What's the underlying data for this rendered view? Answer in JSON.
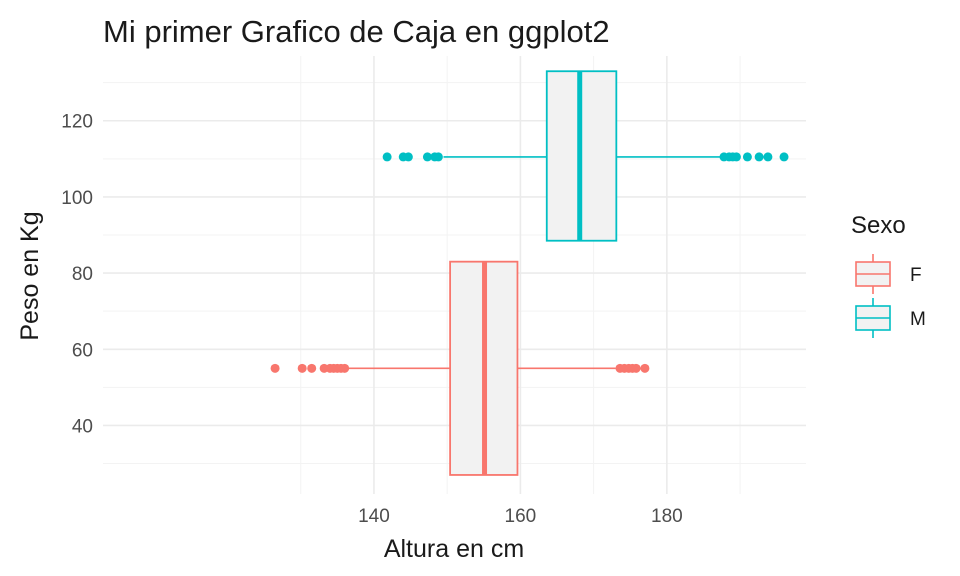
{
  "chart_data": {
    "type": "boxplot",
    "title": "Mi primer Grafico de Caja en ggplot2",
    "xlabel": "Altura en cm",
    "ylabel": "Peso en Kg",
    "xlim": [
      103,
      199
    ],
    "ylim": [
      22,
      137
    ],
    "x_ticks": [
      140,
      160,
      180
    ],
    "y_ticks": [
      40,
      60,
      80,
      100,
      120
    ],
    "grid": true,
    "legend": {
      "title": "Sexo",
      "position": "right"
    },
    "series": [
      {
        "name": "F",
        "color": "#F8766D",
        "y_lower": 27,
        "y_upper": 83,
        "x_min": 136.2,
        "q1": 150.4,
        "median": 155.1,
        "q3": 159.6,
        "x_max": 173.0,
        "outlier_y": 55,
        "outliers": [
          126.5,
          130.2,
          131.5,
          133.2,
          134.0,
          134.5,
          135.0,
          135.5,
          136.0,
          173.6,
          174.2,
          174.8,
          175.3,
          175.8,
          177.0
        ]
      },
      {
        "name": "M",
        "color": "#00BFC4",
        "y_lower": 88.5,
        "y_upper": 133,
        "x_min": 149.5,
        "q1": 163.6,
        "median": 168.1,
        "q3": 173.1,
        "x_max": 187.3,
        "outlier_y": 110.5,
        "outliers": [
          141.8,
          144.0,
          144.7,
          147.3,
          148.3,
          148.8,
          187.8,
          188.5,
          189.0,
          189.5,
          191.0,
          192.6,
          193.8,
          196.0
        ]
      }
    ]
  }
}
